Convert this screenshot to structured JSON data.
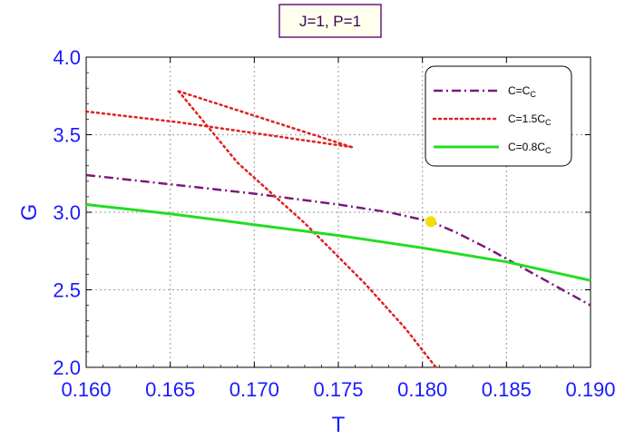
{
  "chart_data": {
    "type": "line",
    "title": "J=1, P=1",
    "xlabel": "T",
    "ylabel": "G",
    "xlim": [
      0.16,
      0.19
    ],
    "ylim": [
      2.0,
      4.0
    ],
    "xticks": [
      "0.160",
      "0.165",
      "0.170",
      "0.175",
      "0.180",
      "0.185",
      "0.190"
    ],
    "yticks": [
      "2.0",
      "2.5",
      "3.0",
      "3.5",
      "4.0"
    ],
    "grid": true,
    "legend_position": "top-right",
    "series": [
      {
        "name": "C=C_C",
        "name_main": "C=C",
        "name_sub": "C",
        "color": "#7a1a7a",
        "style": "dashdot",
        "x": [
          0.16,
          0.165,
          0.17,
          0.175,
          0.178,
          0.1805,
          0.182,
          0.184,
          0.186,
          0.188,
          0.19
        ],
        "y": [
          3.24,
          3.18,
          3.12,
          3.05,
          3.0,
          2.94,
          2.87,
          2.76,
          2.64,
          2.52,
          2.4
        ]
      },
      {
        "name": "C=1.5C_C",
        "name_main": "C=1.5C",
        "name_sub": "C",
        "color": "#e02020",
        "style": "dotted",
        "x": [
          0.16,
          0.1655,
          0.1758
        ],
        "y": [
          3.65,
          3.58,
          3.42
        ],
        "extra_segments": [
          {
            "x": [
              0.1655,
              0.1758
            ],
            "y": [
              3.78,
              3.42
            ]
          },
          {
            "x": [
              0.1655,
              0.169,
              0.173,
              0.1765,
              0.179,
              0.1808
            ],
            "y": [
              3.78,
              3.32,
              2.93,
              2.55,
              2.25,
              2.0
            ]
          }
        ]
      },
      {
        "name": "C=0.8C_C",
        "name_main": "C=0.8C",
        "name_sub": "C",
        "color": "#22dd22",
        "style": "solid",
        "x": [
          0.16,
          0.165,
          0.17,
          0.175,
          0.18,
          0.185,
          0.19
        ],
        "y": [
          3.05,
          2.99,
          2.92,
          2.85,
          2.77,
          2.68,
          2.56
        ]
      }
    ],
    "marker": {
      "x": 0.1805,
      "y": 2.94,
      "color": "#f0e000"
    }
  }
}
